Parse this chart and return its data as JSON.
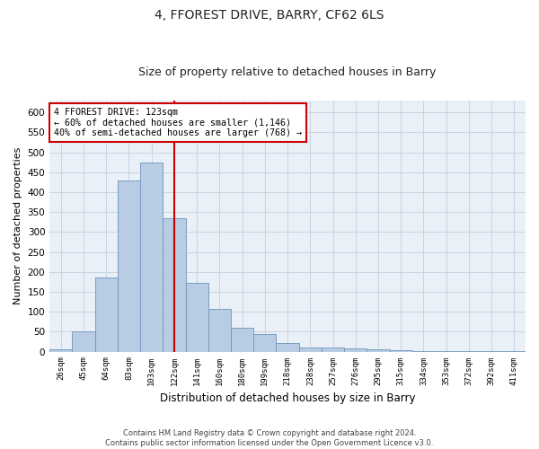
{
  "title": "4, FFOREST DRIVE, BARRY, CF62 6LS",
  "subtitle": "Size of property relative to detached houses in Barry",
  "xlabel": "Distribution of detached houses by size in Barry",
  "ylabel": "Number of detached properties",
  "categories": [
    "26sqm",
    "45sqm",
    "64sqm",
    "83sqm",
    "103sqm",
    "122sqm",
    "141sqm",
    "160sqm",
    "180sqm",
    "199sqm",
    "218sqm",
    "238sqm",
    "257sqm",
    "276sqm",
    "295sqm",
    "315sqm",
    "334sqm",
    "353sqm",
    "372sqm",
    "392sqm",
    "411sqm"
  ],
  "values": [
    5,
    50,
    185,
    428,
    475,
    335,
    172,
    107,
    60,
    43,
    22,
    10,
    10,
    8,
    5,
    3,
    2,
    2,
    1,
    2,
    2
  ],
  "bar_color": "#b8cce4",
  "bar_edge_color": "#7094b8",
  "grid_color": "#c8d4e0",
  "bg_color": "#eaf0f8",
  "vline_x_index": 5,
  "vline_color": "#cc0000",
  "annotation_line1": "4 FFOREST DRIVE: 123sqm",
  "annotation_line2": "← 60% of detached houses are smaller (1,146)",
  "annotation_line3": "40% of semi-detached houses are larger (768) →",
  "annotation_box_color": "#ffffff",
  "annotation_box_edge": "#cc0000",
  "footer": "Contains HM Land Registry data © Crown copyright and database right 2024.\nContains public sector information licensed under the Open Government Licence v3.0.",
  "ylim": [
    0,
    630
  ],
  "yticks": [
    0,
    50,
    100,
    150,
    200,
    250,
    300,
    350,
    400,
    450,
    500,
    550,
    600
  ]
}
